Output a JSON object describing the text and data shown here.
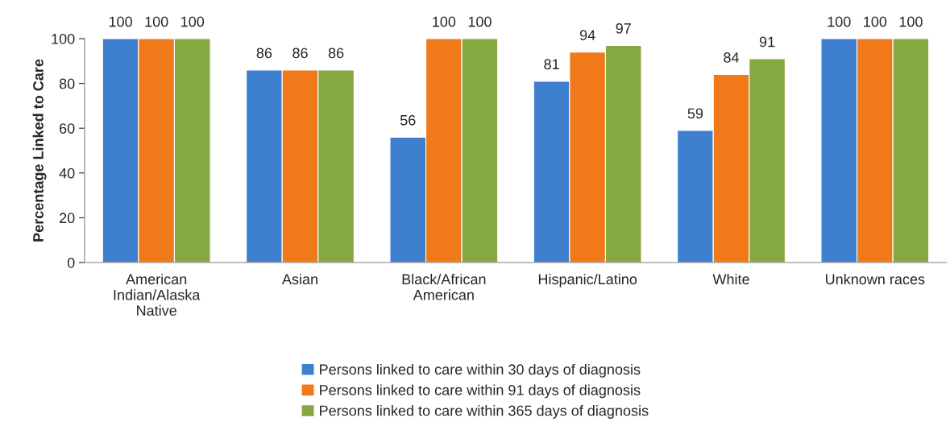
{
  "chart_data": {
    "type": "bar",
    "ylabel": "Percentage Linked to Care",
    "categories": [
      "American\nIndian/Alaska\nNative",
      "Asian",
      "Black/African\nAmerican",
      "Hispanic/Latino",
      "White",
      "Unknown races"
    ],
    "series": [
      {
        "name": "Persons linked to care within 30 days of diagnosis",
        "color": "#3f7fd0",
        "values": [
          100,
          86,
          56,
          81,
          59,
          100
        ]
      },
      {
        "name": "Persons linked to care within 91 days of diagnosis",
        "color": "#f07a1a",
        "values": [
          100,
          86,
          100,
          94,
          84,
          100
        ]
      },
      {
        "name": "Persons linked to care within 365 days of diagnosis",
        "color": "#86a840",
        "values": [
          100,
          86,
          100,
          97,
          91,
          100
        ]
      }
    ],
    "ylim": [
      0,
      100
    ],
    "yticks": [
      0,
      20,
      40,
      60,
      80,
      100
    ],
    "data_labels": true,
    "grid": false,
    "legend": "bottom"
  }
}
